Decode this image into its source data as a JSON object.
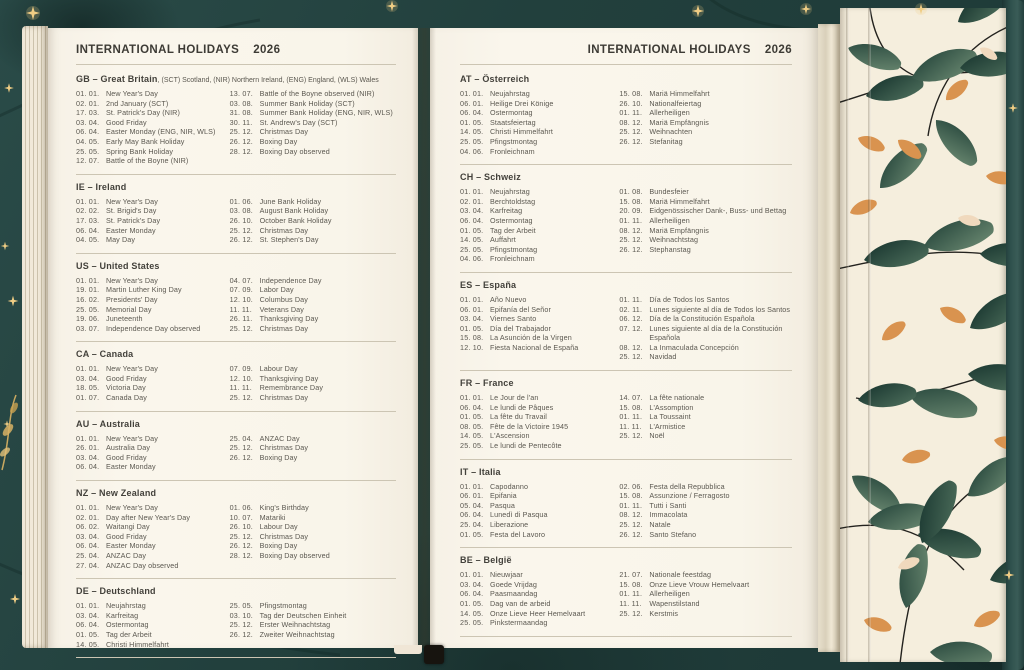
{
  "book_title": "INTERNATIONAL HOLIDAYS",
  "year": "2026",
  "palette": {
    "cover_teal": "#23413e",
    "paper": "#f9f5ea",
    "endpaper_cream": "#f5eedd",
    "leaf_teal_dark": "#1a3731",
    "leaf_teal_light": "#4e6f5c",
    "leaf_orange": "#d9934f",
    "star_gold": "#f0cd84",
    "text_gray": "#5b5850",
    "rule_gray": "#ccc5b3"
  },
  "decorations": {
    "stars": "star-icon",
    "leaf_pattern": "leaf-pattern",
    "gold_branch": "gold-branch-decoration",
    "elastic_tab": "elastic-band-tab"
  },
  "pages": [
    {
      "id": "left",
      "header": "INTERNATIONAL HOLIDAYS",
      "year": "2026",
      "sections": [
        {
          "title": "GB – Great Britain",
          "subtitle": ", (SCT) Scotland, (NIR) Northern Ireland, (ENG) England, (WLS) Wales",
          "col1": [
            [
              "01. 01.",
              "New Year's Day"
            ],
            [
              "02. 01.",
              "2nd January (SCT)"
            ],
            [
              "17. 03.",
              "St. Patrick's Day (NIR)"
            ],
            [
              "03. 04.",
              "Good Friday"
            ],
            [
              "06. 04.",
              "Easter Monday (ENG, NIR, WLS)"
            ],
            [
              "04. 05.",
              "Early May Bank Holiday"
            ],
            [
              "25. 05.",
              "Spring Bank Holiday"
            ],
            [
              "12. 07.",
              "Battle of the Boyne (NIR)"
            ]
          ],
          "col2": [
            [
              "13. 07.",
              "Battle of the Boyne observed (NIR)"
            ],
            [
              "03. 08.",
              "Summer Bank Holiday (SCT)"
            ],
            [
              "31. 08.",
              "Summer Bank Holiday (ENG, NIR, WLS)"
            ],
            [
              "30. 11.",
              "St. Andrew's Day (SCT)"
            ],
            [
              "25. 12.",
              "Christmas Day"
            ],
            [
              "26. 12.",
              "Boxing Day"
            ],
            [
              "28. 12.",
              "Boxing Day observed"
            ]
          ]
        },
        {
          "title": "IE – Ireland",
          "subtitle": "",
          "col1": [
            [
              "01. 01.",
              "New Year's Day"
            ],
            [
              "02. 02.",
              "St. Brigid's Day"
            ],
            [
              "17. 03.",
              "St. Patrick's Day"
            ],
            [
              "06. 04.",
              "Easter Monday"
            ],
            [
              "04. 05.",
              "May Day"
            ]
          ],
          "col2": [
            [
              "01. 06.",
              "June Bank Holiday"
            ],
            [
              "03. 08.",
              "August Bank Holiday"
            ],
            [
              "26. 10.",
              "October Bank Holiday"
            ],
            [
              "25. 12.",
              "Christmas Day"
            ],
            [
              "26. 12.",
              "St. Stephen's Day"
            ]
          ]
        },
        {
          "title": "US – United States",
          "subtitle": "",
          "col1": [
            [
              "01. 01.",
              "New Year's Day"
            ],
            [
              "19. 01.",
              "Martin Luther King Day"
            ],
            [
              "16. 02.",
              "Presidents' Day"
            ],
            [
              "25. 05.",
              "Memorial Day"
            ],
            [
              "19. 06.",
              "Juneteenth"
            ],
            [
              "03. 07.",
              "Independence Day observed"
            ]
          ],
          "col2": [
            [
              "04. 07.",
              "Independence Day"
            ],
            [
              "07. 09.",
              "Labor Day"
            ],
            [
              "12. 10.",
              "Columbus Day"
            ],
            [
              "11. 11.",
              "Veterans Day"
            ],
            [
              "26. 11.",
              "Thanksgiving Day"
            ],
            [
              "25. 12.",
              "Christmas Day"
            ]
          ]
        },
        {
          "title": "CA – Canada",
          "subtitle": "",
          "col1": [
            [
              "01. 01.",
              "New Year's Day"
            ],
            [
              "03. 04.",
              "Good Friday"
            ],
            [
              "18. 05.",
              "Victoria Day"
            ],
            [
              "01. 07.",
              "Canada Day"
            ]
          ],
          "col2": [
            [
              "07. 09.",
              "Labour Day"
            ],
            [
              "12. 10.",
              "Thanksgiving Day"
            ],
            [
              "11. 11.",
              "Remembrance Day"
            ],
            [
              "25. 12.",
              "Christmas Day"
            ]
          ]
        },
        {
          "title": "AU – Australia",
          "subtitle": "",
          "col1": [
            [
              "01. 01.",
              "New Year's Day"
            ],
            [
              "26. 01.",
              "Australia Day"
            ],
            [
              "03. 04.",
              "Good Friday"
            ],
            [
              "06. 04.",
              "Easter Monday"
            ]
          ],
          "col2": [
            [
              "25. 04.",
              "ANZAC Day"
            ],
            [
              "25. 12.",
              "Christmas Day"
            ],
            [
              "26. 12.",
              "Boxing Day"
            ]
          ]
        },
        {
          "title": "NZ – New Zealand",
          "subtitle": "",
          "col1": [
            [
              "01. 01.",
              "New Year's Day"
            ],
            [
              "02. 01.",
              "Day after New Year's Day"
            ],
            [
              "06. 02.",
              "Waitangi Day"
            ],
            [
              "03. 04.",
              "Good Friday"
            ],
            [
              "06. 04.",
              "Easter Monday"
            ],
            [
              "25. 04.",
              "ANZAC Day"
            ],
            [
              "27. 04.",
              "ANZAC Day observed"
            ]
          ],
          "col2": [
            [
              "01. 06.",
              "King's Birthday"
            ],
            [
              "10. 07.",
              "Matariki"
            ],
            [
              "26. 10.",
              "Labour Day"
            ],
            [
              "25. 12.",
              "Christmas Day"
            ],
            [
              "26. 12.",
              "Boxing Day"
            ],
            [
              "28. 12.",
              "Boxing Day observed"
            ]
          ]
        },
        {
          "title": "DE – Deutschland",
          "subtitle": "",
          "col1": [
            [
              "01. 01.",
              "Neujahrstag"
            ],
            [
              "03. 04.",
              "Karfreitag"
            ],
            [
              "06. 04.",
              "Ostermontag"
            ],
            [
              "01. 05.",
              "Tag der Arbeit"
            ],
            [
              "14. 05.",
              "Christi Himmelfahrt"
            ]
          ],
          "col2": [
            [
              "25. 05.",
              "Pfingstmontag"
            ],
            [
              "03. 10.",
              "Tag der Deutschen Einheit"
            ],
            [
              "25. 12.",
              "Erster Weihnachtstag"
            ],
            [
              "26. 12.",
              "Zweiter Weihnachtstag"
            ]
          ]
        }
      ]
    },
    {
      "id": "right",
      "header": "INTERNATIONAL HOLIDAYS",
      "year": "2026",
      "sections": [
        {
          "title": "AT – Österreich",
          "subtitle": "",
          "col1": [
            [
              "01. 01.",
              "Neujahrstag"
            ],
            [
              "06. 01.",
              "Heilige Drei Könige"
            ],
            [
              "06. 04.",
              "Ostermontag"
            ],
            [
              "01. 05.",
              "Staatsfeiertag"
            ],
            [
              "14. 05.",
              "Christi Himmelfahrt"
            ],
            [
              "25. 05.",
              "Pfingstmontag"
            ],
            [
              "04. 06.",
              "Fronleichnam"
            ]
          ],
          "col2": [
            [
              "15. 08.",
              "Mariä Himmelfahrt"
            ],
            [
              "26. 10.",
              "Nationalfeiertag"
            ],
            [
              "01. 11.",
              "Allerheiligen"
            ],
            [
              "08. 12.",
              "Mariä Empfängnis"
            ],
            [
              "25. 12.",
              "Weihnachten"
            ],
            [
              "26. 12.",
              "Stefanitag"
            ]
          ]
        },
        {
          "title": "CH – Schweiz",
          "subtitle": "",
          "col1": [
            [
              "01. 01.",
              "Neujahrstag"
            ],
            [
              "02. 01.",
              "Berchtoldstag"
            ],
            [
              "03. 04.",
              "Karfreitag"
            ],
            [
              "06. 04.",
              "Ostermontag"
            ],
            [
              "01. 05.",
              "Tag der Arbeit"
            ],
            [
              "14. 05.",
              "Auffahrt"
            ],
            [
              "25. 05.",
              "Pfingstmontag"
            ],
            [
              "04. 06.",
              "Fronleichnam"
            ]
          ],
          "col2": [
            [
              "01. 08.",
              "Bundesfeier"
            ],
            [
              "15. 08.",
              "Mariä Himmelfahrt"
            ],
            [
              "20. 09.",
              "Eidgenössischer Dank-, Buss- und Bettag"
            ],
            [
              "01. 11.",
              "Allerheiligen"
            ],
            [
              "08. 12.",
              "Mariä Empfängnis"
            ],
            [
              "25. 12.",
              "Weihnachtstag"
            ],
            [
              "26. 12.",
              "Stephanstag"
            ]
          ]
        },
        {
          "title": "ES – España",
          "subtitle": "",
          "col1": [
            [
              "01. 01.",
              "Año Nuevo"
            ],
            [
              "06. 01.",
              "Epifanía del Señor"
            ],
            [
              "03. 04.",
              "Viernes Santo"
            ],
            [
              "01. 05.",
              "Día del Trabajador"
            ],
            [
              "15. 08.",
              "La Asunción de la Virgen"
            ],
            [
              "12. 10.",
              "Fiesta Nacional de España"
            ]
          ],
          "col2": [
            [
              "01. 11.",
              "Día de Todos los Santos"
            ],
            [
              "02. 11.",
              "Lunes siguiente al día de Todos los Santos"
            ],
            [
              "06. 12.",
              "Día de la Constitución Española"
            ],
            [
              "07. 12.",
              "Lunes siguiente al día de la Constitución Española"
            ],
            [
              "08. 12.",
              "La Inmaculada Concepción"
            ],
            [
              "25. 12.",
              "Navidad"
            ]
          ]
        },
        {
          "title": "FR – France",
          "subtitle": "",
          "col1": [
            [
              "01. 01.",
              "Le Jour de l'an"
            ],
            [
              "06. 04.",
              "Le lundi de Pâques"
            ],
            [
              "01. 05.",
              "La fête du Travail"
            ],
            [
              "08. 05.",
              "Fête de la Victoire 1945"
            ],
            [
              "14. 05.",
              "L'Ascension"
            ],
            [
              "25. 05.",
              "Le lundi de Pentecôte"
            ]
          ],
          "col2": [
            [
              "14. 07.",
              "La fête nationale"
            ],
            [
              "15. 08.",
              "L'Assomption"
            ],
            [
              "01. 11.",
              "La Toussaint"
            ],
            [
              "11. 11.",
              "L'Armistice"
            ],
            [
              "25. 12.",
              "Noël"
            ]
          ]
        },
        {
          "title": "IT – Italia",
          "subtitle": "",
          "col1": [
            [
              "01. 01.",
              "Capodanno"
            ],
            [
              "06. 01.",
              "Epifania"
            ],
            [
              "05. 04.",
              "Pasqua"
            ],
            [
              "06. 04.",
              "Lunedì di Pasqua"
            ],
            [
              "25. 04.",
              "Liberazione"
            ],
            [
              "01. 05.",
              "Festa del Lavoro"
            ]
          ],
          "col2": [
            [
              "02. 06.",
              "Festa della Repubblica"
            ],
            [
              "15. 08.",
              "Assunzione / Ferragosto"
            ],
            [
              "01. 11.",
              "Tutti i Santi"
            ],
            [
              "08. 12.",
              "Immacolata"
            ],
            [
              "25. 12.",
              "Natale"
            ],
            [
              "26. 12.",
              "Santo Stefano"
            ]
          ]
        },
        {
          "title": "BE – België",
          "subtitle": "",
          "col1": [
            [
              "01. 01.",
              "Nieuwjaar"
            ],
            [
              "03. 04.",
              "Goede Vrijdag"
            ],
            [
              "06. 04.",
              "Paasmaandag"
            ],
            [
              "01. 05.",
              "Dag van de arbeid"
            ],
            [
              "14. 05.",
              "Onze Lieve Heer Hemelvaart"
            ],
            [
              "25. 05.",
              "Pinkstermaandag"
            ]
          ],
          "col2": [
            [
              "21. 07.",
              "Nationale feestdag"
            ],
            [
              "15. 08.",
              "Onze Lieve Vrouw Hemelvaart"
            ],
            [
              "01. 11.",
              "Allerheiligen"
            ],
            [
              "11. 11.",
              "Wapenstilstand"
            ],
            [
              "25. 12.",
              "Kerstmis"
            ]
          ]
        }
      ]
    }
  ]
}
